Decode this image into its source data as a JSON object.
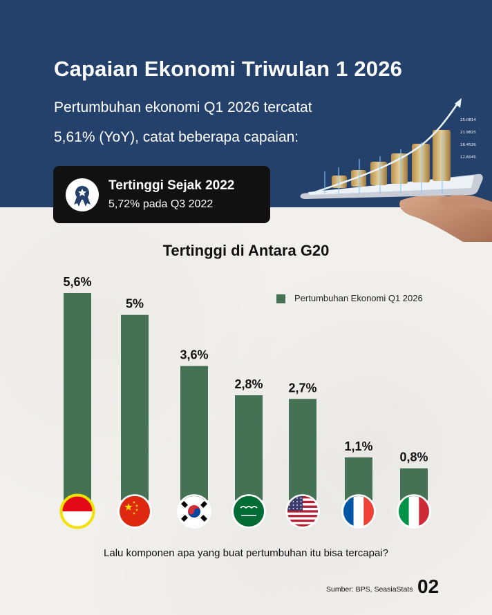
{
  "header": {
    "title": "Capaian Ekonomi Triwulan 1 2026",
    "subtitle_line1": "Pertumbuhan ekonomi Q1 2026 tercatat",
    "subtitle_line2": "5,61% (YoY), catat beberapa capaian:"
  },
  "badge": {
    "icon": "award-ribbon-icon",
    "title": "Tertinggi Sejak 2022",
    "subtitle": "5,72% pada Q3 2022"
  },
  "hero_image": {
    "description_icon": "hand-holding-tablet-coins-icon",
    "tablet_values": [
      "25.0814",
      "21.9825",
      "16.4526",
      "12.6045"
    ]
  },
  "chart_data": {
    "type": "bar",
    "title": "Tertinggi di Antara G20",
    "categories": [
      "Indonesia",
      "China",
      "Korea Selatan",
      "Arab Saudi",
      "Amerika Serikat",
      "Prancis",
      "Italia"
    ],
    "series": [
      {
        "name": "Pertumbuhan Ekonomi Q1 2026",
        "values": [
          5.6,
          5.0,
          3.6,
          2.8,
          2.7,
          1.1,
          0.8
        ]
      }
    ],
    "data_labels": [
      "5,6%",
      "5%",
      "3,6%",
      "2,8%",
      "2,7%",
      "1,1%",
      "0,8%"
    ],
    "flags": [
      "flag-indonesia-icon",
      "flag-china-icon",
      "flag-south-korea-icon",
      "flag-saudi-arabia-icon",
      "flag-usa-icon",
      "flag-france-icon",
      "flag-italy-icon"
    ],
    "highlight_index": 0,
    "ylim": [
      0,
      5.6
    ],
    "xlabel": "",
    "ylabel": "",
    "grid": false,
    "legend_position": "top-right",
    "colors": {
      "bar": "#457255",
      "highlight_ring": "#f2e200"
    }
  },
  "footer": {
    "question": "Lalu komponen apa yang buat pertumbuhan itu bisa tercapai?",
    "source": "Sumber: BPS, SeasiaStats",
    "page_number": "02"
  }
}
